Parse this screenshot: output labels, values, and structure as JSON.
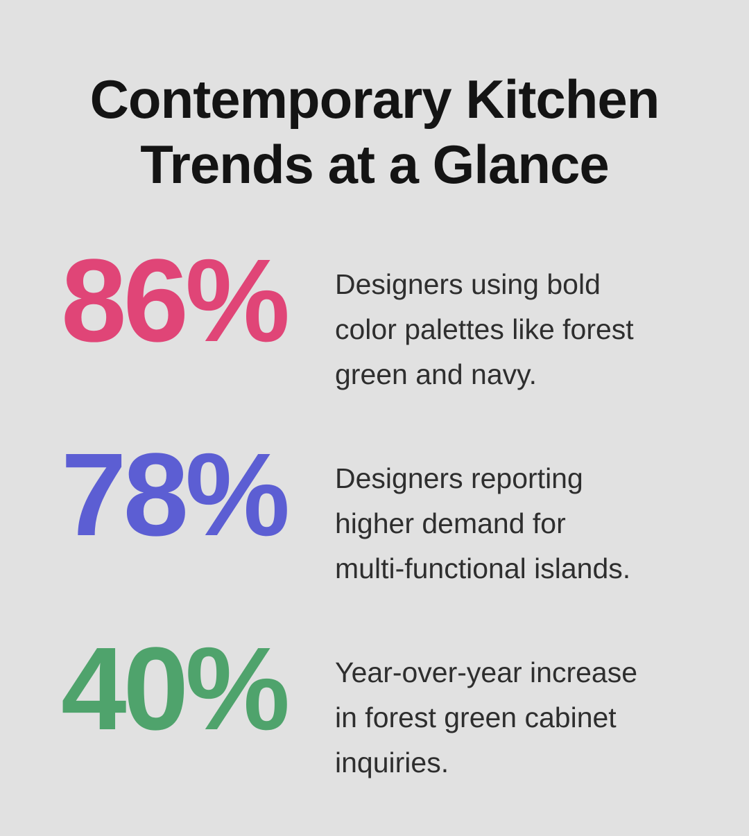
{
  "page": {
    "background_color": "#e1e1e1",
    "title": "Contemporary Kitchen\nTrends at a Glance",
    "title_color": "#141414"
  },
  "stats": [
    {
      "value": "86%",
      "color": "#e04577",
      "description": "Designers using bold\ncolor palettes like forest\ngreen and navy."
    },
    {
      "value": "78%",
      "color": "#5c5ed3",
      "description": "Designers reporting\nhigher demand for\nmulti-functional islands."
    },
    {
      "value": "40%",
      "color": "#4fa36c",
      "description": "Year-over-year increase\nin forest green cabinet\ninquiries."
    }
  ],
  "chart_data": {
    "type": "table",
    "title": "Contemporary Kitchen Trends at a Glance",
    "categories": [
      "Designers using bold color palettes like forest green and navy.",
      "Designers reporting higher demand for multi-functional islands.",
      "Year-over-year increase in forest green cabinet inquiries."
    ],
    "values": [
      86,
      78,
      40
    ],
    "unit": "%",
    "value_colors": [
      "#e04577",
      "#5c5ed3",
      "#4fa36c"
    ],
    "legend_position": "none",
    "grid": false
  }
}
